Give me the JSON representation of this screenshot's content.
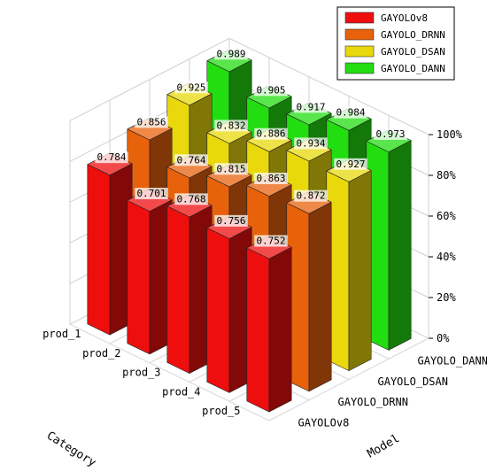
{
  "chart_data": {
    "type": "bar",
    "categories": [
      "prod_1",
      "prod_2",
      "prod_3",
      "prod_4",
      "prod_5"
    ],
    "series": [
      {
        "name": "GAYOLOv8",
        "color": "#ee0e0e",
        "values": [
          0.784,
          0.701,
          0.768,
          0.756,
          0.752
        ]
      },
      {
        "name": "GAYOLO_DRNN",
        "color": "#e8620c",
        "values": [
          0.856,
          0.764,
          0.815,
          0.863,
          0.872
        ]
      },
      {
        "name": "GAYOLO_DSAN",
        "color": "#e8d80c",
        "values": [
          0.925,
          0.832,
          0.886,
          0.934,
          0.927
        ]
      },
      {
        "name": "GAYOLO_DANN",
        "color": "#22dd10",
        "values": [
          0.989,
          0.905,
          0.917,
          0.984,
          0.973
        ]
      }
    ],
    "xlabel": "Category",
    "ylabel": "Model",
    "zticks": [
      "0%",
      "20%",
      "40%",
      "60%",
      "80%",
      "100%"
    ],
    "zlim": [
      0,
      1
    ],
    "legend_position": "top-right",
    "grid": true
  }
}
